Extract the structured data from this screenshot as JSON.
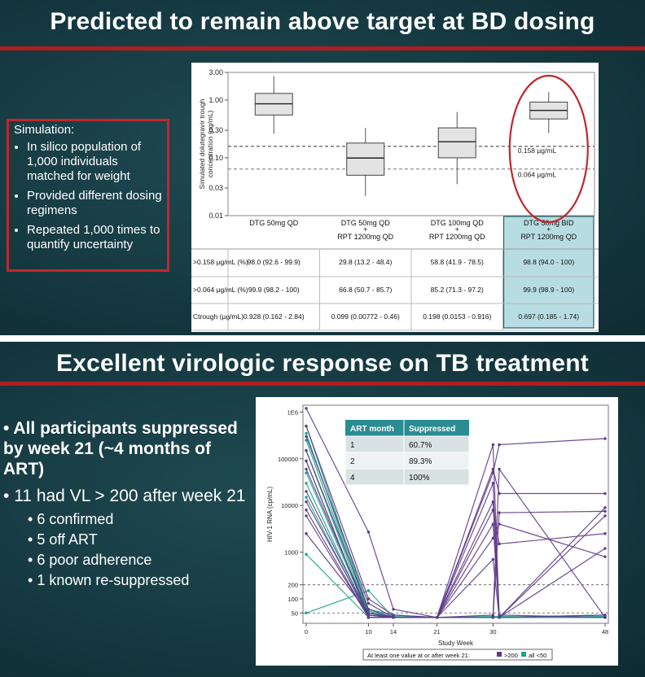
{
  "slide1": {
    "title": "Predicted to remain above target at BD dosing",
    "sim_heading": "Simulation:",
    "bullets": [
      "In silico population of 1,000 individuals matched for weight",
      "Provided different dosing regimens",
      "Repeated 1,000 times to quantify uncertainty"
    ]
  },
  "slide2": {
    "title": "Excellent virologic response on TB treatment",
    "bullet1": "All participants suppressed by week 21 (~4 months of ART)",
    "bullet2": "11 had VL > 200 after week 21",
    "sub_bullets": [
      "6 confirmed",
      "5 off ART",
      "6 poor adherence",
      "1 known re-suppressed"
    ]
  },
  "colors": {
    "red": "#b01d21",
    "purple": "#5e3a87",
    "teal": "#1aa58a",
    "highlight": "#b7dde2",
    "table_header": "#2a8c93"
  },
  "chart_data": [
    {
      "type": "box",
      "ylabel": "Simulated dolutegravir trough concentration (µg/mL)",
      "y_scale": "log",
      "ylim": [
        0.01,
        3.0
      ],
      "yticks": [
        "3.00",
        "1.00",
        "0.30",
        "0.10",
        "0.03",
        "0.01"
      ],
      "ytick_values": [
        3.0,
        1.0,
        0.3,
        0.1,
        0.03,
        0.01
      ],
      "reference_lines": [
        {
          "value": 0.158,
          "label": "0.158 µg/mL"
        },
        {
          "value": 0.064,
          "label": "0.064 µg/mL"
        }
      ],
      "groups": [
        {
          "name": [
            "DTG 50mg QD"
          ],
          "min": 0.26,
          "q1": 0.55,
          "median": 0.86,
          "q3": 1.3,
          "max": 2.6
        },
        {
          "name": [
            "DTG 50mg QD",
            "+",
            "RPT 1200mg QD"
          ],
          "min": 0.022,
          "q1": 0.05,
          "median": 0.099,
          "q3": 0.18,
          "max": 0.33
        },
        {
          "name": [
            "DTG 100mg QD",
            "+",
            "RPT 1200mg QD"
          ],
          "min": 0.035,
          "q1": 0.1,
          "median": 0.19,
          "q3": 0.33,
          "max": 0.62
        },
        {
          "name": [
            "DTG 50mg BID",
            "+",
            "RPT 1200mg QD"
          ],
          "min": 0.27,
          "q1": 0.47,
          "median": 0.66,
          "q3": 0.92,
          "max": 1.38,
          "highlight": true
        }
      ],
      "table": {
        "rows": [
          {
            "label": ">0.158 µg/mL (%)",
            "cells": [
              "98.0 (92.6 - 99.9)",
              "29.8 (13.2 - 48.4)",
              "58.8 (41.9 - 78.5)",
              "98.8 (94.0 - 100)"
            ]
          },
          {
            "label": ">0.064 µg/mL (%)",
            "cells": [
              "99.9 (98.2 - 100)",
              "66.8 (50.7 - 85.7)",
              "85.2 (71.3 - 97.2)",
              "99.9 (98.9 - 100)"
            ]
          },
          {
            "label": "Ctrough (µg/mL)",
            "cells": [
              "0.928 (0.162 - 2.84)",
              "0.099 (0.00772 - 0.46)",
              "0.198 (0.0153 - 0.916)",
              "0.697 (0.185 - 1.74)"
            ]
          }
        ]
      }
    },
    {
      "type": "line",
      "xlabel": "Study Week",
      "ylabel": "HIV-1 RNA (cp/mL)",
      "y_scale": "log",
      "xticks": [
        0,
        10,
        14,
        21,
        30,
        48
      ],
      "yticks": [
        {
          "label": "1E6",
          "value": 1000000
        },
        {
          "label": "100000",
          "value": 100000
        },
        {
          "label": "10000",
          "value": 10000
        },
        {
          "label": "1000",
          "value": 1000
        },
        {
          "label": "200",
          "value": 200
        },
        {
          "label": "100",
          "value": 100
        },
        {
          "label": "50",
          "value": 50
        }
      ],
      "reference_lines": [
        200,
        50
      ],
      "inset_table": {
        "headers": [
          "ART month",
          "Suppressed"
        ],
        "rows": [
          [
            "1",
            "60.7%"
          ],
          [
            "2",
            "89.3%"
          ],
          [
            "4",
            "100%"
          ]
        ]
      },
      "legend": {
        "prefix": "At least one value at or after week 21:",
        "items": [
          {
            "label": ">200",
            "color": "#5e3a87"
          },
          {
            "label": "all <50",
            "color": "#1aa58a"
          }
        ]
      },
      "series": [
        {
          "group": ">200",
          "x": [
            0,
            10,
            14,
            21,
            30,
            31,
            48
          ],
          "y": [
            1200000,
            2700,
            60,
            40,
            50000,
            200000,
            270000
          ]
        },
        {
          "group": ">200",
          "x": [
            0,
            10,
            14,
            21,
            30,
            31,
            48
          ],
          "y": [
            500000,
            100,
            45,
            40,
            200000,
            40,
            6000
          ]
        },
        {
          "group": ">200",
          "x": [
            0,
            10,
            14,
            21,
            30,
            31,
            48
          ],
          "y": [
            300000,
            80,
            40,
            40,
            40,
            7000,
            7500
          ]
        },
        {
          "group": ">200",
          "x": [
            0,
            10,
            14,
            21,
            30,
            31,
            48
          ],
          "y": [
            150000,
            60,
            40,
            40,
            60000,
            18000,
            18000
          ]
        },
        {
          "group": ">200",
          "x": [
            0,
            10,
            14,
            21,
            30,
            31,
            48
          ],
          "y": [
            60000,
            50,
            40,
            40,
            8000,
            1500,
            2500
          ]
        },
        {
          "group": ">200",
          "x": [
            0,
            10,
            14,
            21,
            30,
            31,
            48
          ],
          "y": [
            20000,
            45,
            40,
            40,
            30000,
            40,
            9000
          ]
        },
        {
          "group": ">200",
          "x": [
            0,
            10,
            14,
            21,
            30,
            31,
            48
          ],
          "y": [
            8000,
            40,
            40,
            40,
            2000,
            4000,
            800
          ]
        },
        {
          "group": ">200",
          "x": [
            0,
            10,
            14,
            21,
            30,
            31,
            48
          ],
          "y": [
            2500,
            50,
            40,
            40,
            700,
            40,
            1200
          ]
        },
        {
          "group": ">200",
          "x": [
            0,
            10,
            14,
            21,
            30,
            31,
            48
          ],
          "y": [
            12000,
            45,
            40,
            40,
            4000,
            45,
            40
          ]
        },
        {
          "group": ">200",
          "x": [
            0,
            10,
            14,
            21,
            30,
            31,
            48
          ],
          "y": [
            6000,
            40,
            40,
            40,
            12000,
            40,
            45
          ]
        },
        {
          "group": ">200",
          "x": [
            0,
            10,
            14,
            21,
            30,
            31,
            48
          ],
          "y": [
            90000,
            40,
            40,
            40,
            45,
            60000,
            40
          ]
        },
        {
          "group": "all <50",
          "x": [
            0,
            10,
            14,
            21,
            30,
            48
          ],
          "y": [
            500000,
            60,
            45,
            40,
            42,
            40
          ]
        },
        {
          "group": "all <50",
          "x": [
            0,
            10,
            14,
            21,
            30,
            48
          ],
          "y": [
            350000,
            55,
            40,
            40,
            40,
            42
          ]
        },
        {
          "group": "all <50",
          "x": [
            0,
            10,
            14,
            21,
            30,
            48
          ],
          "y": [
            250000,
            50,
            40,
            40,
            40,
            40
          ]
        },
        {
          "group": "all <50",
          "x": [
            0,
            10,
            14,
            21,
            30,
            48
          ],
          "y": [
            150000,
            45,
            42,
            40,
            40,
            40
          ]
        },
        {
          "group": "all <50",
          "x": [
            0,
            10,
            14,
            21,
            30,
            48
          ],
          "y": [
            90000,
            40,
            40,
            40,
            40,
            40
          ]
        },
        {
          "group": "all <50",
          "x": [
            0,
            10,
            14,
            21,
            30,
            48
          ],
          "y": [
            50000,
            45,
            40,
            40,
            40,
            45
          ]
        },
        {
          "group": "all <50",
          "x": [
            0,
            10,
            14,
            21,
            30,
            48
          ],
          "y": [
            30000,
            40,
            40,
            40,
            40,
            40
          ]
        },
        {
          "group": "all <50",
          "x": [
            0,
            10,
            14,
            21,
            30,
            48
          ],
          "y": [
            15000,
            40,
            40,
            40,
            40,
            40
          ]
        },
        {
          "group": "all <50",
          "x": [
            0,
            10,
            14,
            21,
            30,
            48
          ],
          "y": [
            900,
            40,
            40,
            40,
            40,
            40
          ]
        },
        {
          "group": "all <50",
          "x": [
            0,
            10,
            14,
            21,
            30,
            48
          ],
          "y": [
            50,
            150,
            40,
            40,
            40,
            40
          ]
        }
      ]
    }
  ]
}
